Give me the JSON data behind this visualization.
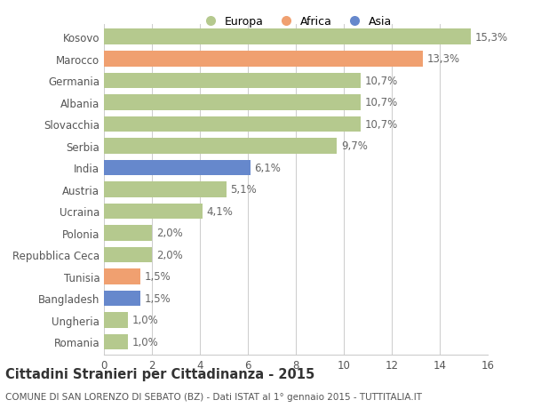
{
  "categories": [
    "Romania",
    "Ungheria",
    "Bangladesh",
    "Tunisia",
    "Repubblica Ceca",
    "Polonia",
    "Ucraina",
    "Austria",
    "India",
    "Serbia",
    "Slovacchia",
    "Albania",
    "Germania",
    "Marocco",
    "Kosovo"
  ],
  "values": [
    1.0,
    1.0,
    1.5,
    1.5,
    2.0,
    2.0,
    4.1,
    5.1,
    6.1,
    9.7,
    10.7,
    10.7,
    10.7,
    13.3,
    15.3
  ],
  "labels": [
    "1,0%",
    "1,0%",
    "1,5%",
    "1,5%",
    "2,0%",
    "2,0%",
    "4,1%",
    "5,1%",
    "6,1%",
    "9,7%",
    "10,7%",
    "10,7%",
    "10,7%",
    "13,3%",
    "15,3%"
  ],
  "continents": [
    "Europa",
    "Europa",
    "Asia",
    "Africa",
    "Europa",
    "Europa",
    "Europa",
    "Europa",
    "Asia",
    "Europa",
    "Europa",
    "Europa",
    "Europa",
    "Africa",
    "Europa"
  ],
  "colors": {
    "Europa": "#b5c98e",
    "Africa": "#f0a070",
    "Asia": "#6688cc"
  },
  "title": "Cittadini Stranieri per Cittadinanza - 2015",
  "subtitle": "COMUNE DI SAN LORENZO DI SEBATO (BZ) - Dati ISTAT al 1° gennaio 2015 - TUTTITALIA.IT",
  "xlim": [
    0,
    16
  ],
  "xticks": [
    0,
    2,
    4,
    6,
    8,
    10,
    12,
    14,
    16
  ],
  "background_color": "#ffffff",
  "grid_color": "#cccccc",
  "bar_height": 0.72,
  "title_fontsize": 10.5,
  "subtitle_fontsize": 7.5,
  "tick_fontsize": 8.5,
  "label_fontsize": 8.5,
  "legend_fontsize": 9
}
